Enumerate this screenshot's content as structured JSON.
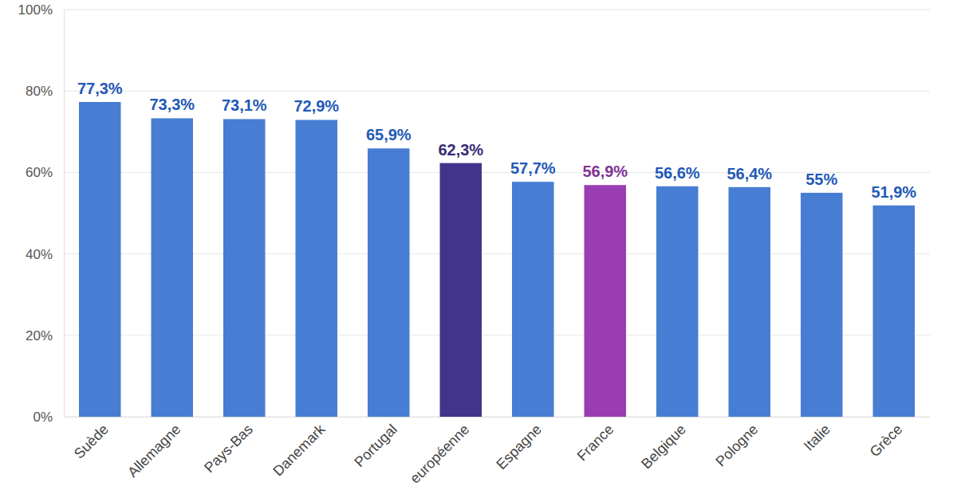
{
  "chart_data": {
    "type": "bar",
    "categories": [
      "Suède",
      "Allemagne",
      "Pays-Bas",
      "Danemark",
      "Portugal",
      "européenne",
      "Espagne",
      "France",
      "Belgique",
      "Pologne",
      "Italie",
      "Grèce"
    ],
    "values": [
      77.3,
      73.3,
      73.1,
      72.9,
      65.9,
      62.3,
      57.7,
      56.9,
      56.6,
      56.4,
      55,
      51.9
    ],
    "value_labels": [
      "77,3%",
      "73,3%",
      "73,1%",
      "72,9%",
      "65,9%",
      "62,3%",
      "57,7%",
      "56,9%",
      "56,6%",
      "56,4%",
      "55%",
      "51,9%"
    ],
    "colors": [
      "#477dd3",
      "#477dd3",
      "#477dd3",
      "#477dd3",
      "#477dd3",
      "#42348c",
      "#477dd3",
      "#9a3db2",
      "#477dd3",
      "#477dd3",
      "#477dd3",
      "#477dd3"
    ],
    "ylim": [
      0,
      100
    ],
    "yticks": [
      {
        "value": 0,
        "label": "0%"
      },
      {
        "value": 20,
        "label": "20%"
      },
      {
        "value": 40,
        "label": "40%"
      },
      {
        "value": 60,
        "label": "60%"
      },
      {
        "value": 80,
        "label": "80%"
      },
      {
        "value": 100,
        "label": "100%"
      }
    ],
    "grid": true,
    "data_labels": true
  }
}
